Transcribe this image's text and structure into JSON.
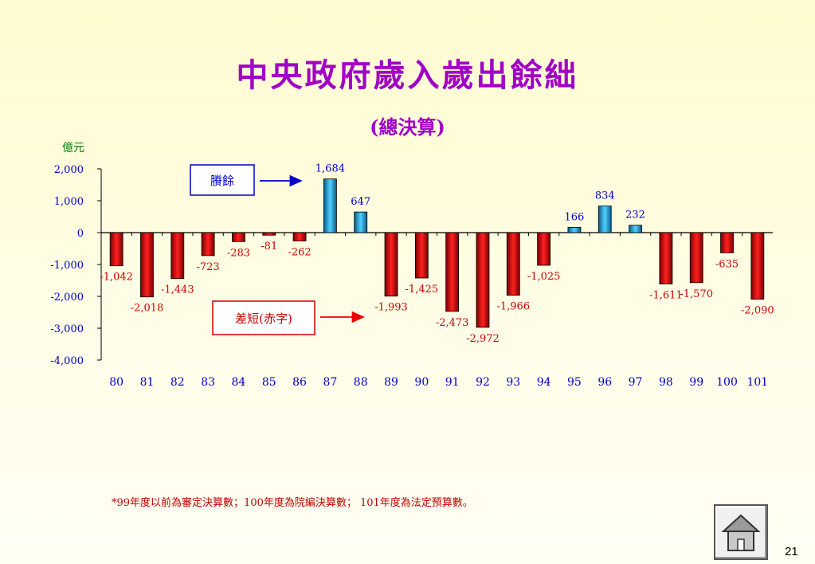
{
  "slide": {
    "title": "中央政府歲入歲出餘絀",
    "subtitle": "(總決算)",
    "footnote": "*99年度以前為審定決算數；100年度為院編決算數； 101年度為法定預算數。",
    "page_number": "21",
    "home_icon": "home-icon"
  },
  "chart_data": {
    "type": "bar",
    "ylabel": "億元",
    "ylim": [
      -4000,
      2000
    ],
    "yticks": [
      2000,
      1000,
      0,
      -1000,
      -2000,
      -3000,
      -4000
    ],
    "ytick_labels": [
      "2,000",
      "1,000",
      "0",
      "-1,000",
      "-2,000",
      "-3,000",
      "-4,000"
    ],
    "categories": [
      "80",
      "81",
      "82",
      "83",
      "84",
      "85",
      "86",
      "87",
      "88",
      "89",
      "90",
      "91",
      "92",
      "93",
      "94",
      "95",
      "96",
      "97",
      "98",
      "99",
      "100",
      "101"
    ],
    "values": [
      -1042,
      -2018,
      -1443,
      -723,
      -283,
      -81,
      -262,
      1684,
      647,
      -1993,
      -1425,
      -2473,
      -2972,
      -1966,
      -1025,
      166,
      834,
      232,
      -1611,
      -1570,
      -635,
      -2090
    ],
    "value_labels": [
      "-1,042",
      "-2,018",
      "-1,443",
      "-723",
      "-283",
      "-81",
      "-262",
      "1,684",
      "647",
      "-1,993",
      "-1,425",
      "-2,473",
      "-2,972",
      "-1,966",
      "-1,025",
      "166",
      "834",
      "232",
      "-1,611",
      "-1,570",
      "-635",
      "-2,090"
    ],
    "legend": {
      "surplus_label": "賸餘",
      "deficit_label": "差短(赤字)"
    },
    "colors": {
      "surplus": "#1fa3d4",
      "deficit": "#cc0000",
      "axis_text": "#0000cc",
      "deficit_text": "#cc0000",
      "ylabel_text": "#008000"
    },
    "grid": false
  }
}
